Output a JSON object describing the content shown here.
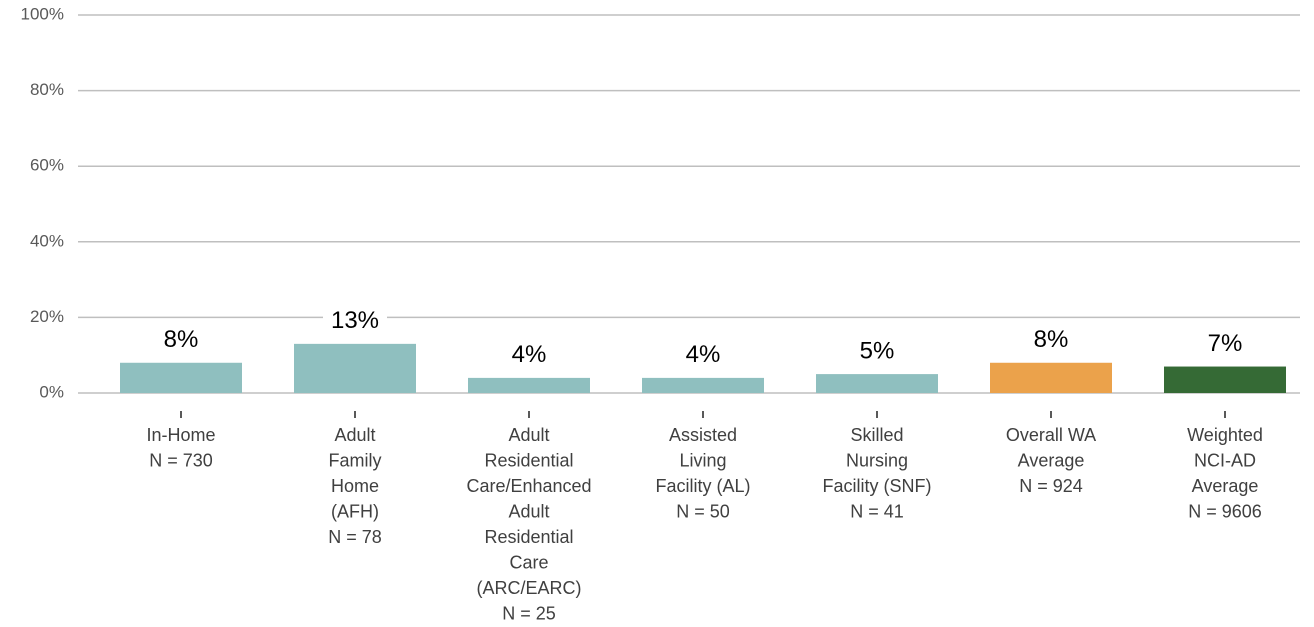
{
  "chart_data": {
    "type": "bar",
    "categories": [
      [
        "In-Home",
        "N = 730"
      ],
      [
        "Adult",
        "Family",
        "Home",
        "(AFH)",
        "N = 78"
      ],
      [
        "Adult",
        "Residential",
        "Care/Enhanced",
        "Adult",
        "Residential",
        "Care",
        "(ARC/EARC)",
        "N = 25"
      ],
      [
        "Assisted",
        "Living",
        "Facility (AL)",
        "N = 50"
      ],
      [
        "Skilled",
        "Nursing",
        "Facility (SNF)",
        "N = 41"
      ],
      [
        "Overall WA",
        "Average",
        "N = 924"
      ],
      [
        "Weighted",
        "NCI-AD",
        "Average",
        "N = 9606"
      ]
    ],
    "values": [
      8,
      13,
      4,
      4,
      5,
      8,
      7
    ],
    "value_labels": [
      "8%",
      "13%",
      "4%",
      "4%",
      "5%",
      "8%",
      "7%"
    ],
    "colors": [
      "#8fbfbf",
      "#8fbfbf",
      "#8fbfbf",
      "#8fbfbf",
      "#8fbfbf",
      "#eba24b",
      "#356a35"
    ],
    "ylim": [
      0,
      100
    ],
    "yticks": [
      {
        "value": 0,
        "label": "0%"
      },
      {
        "value": 20,
        "label": "20%"
      },
      {
        "value": 40,
        "label": "40%"
      },
      {
        "value": 60,
        "label": "60%"
      },
      {
        "value": 80,
        "label": "80%"
      },
      {
        "value": 100,
        "label": "100%"
      }
    ],
    "grid": true
  }
}
